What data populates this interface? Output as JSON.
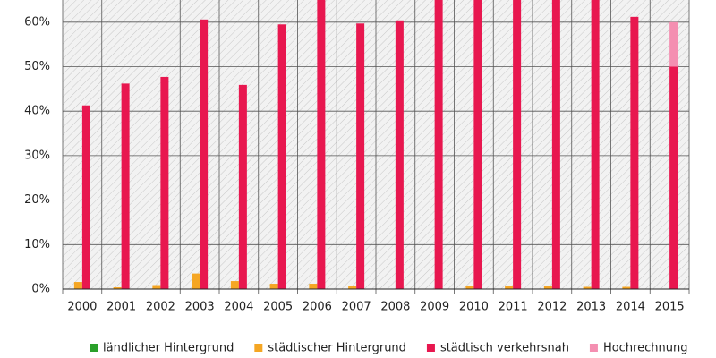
{
  "chart_data": {
    "type": "bar",
    "categories": [
      "2000",
      "2001",
      "2002",
      "2003",
      "2004",
      "2005",
      "2006",
      "2007",
      "2008",
      "2009",
      "2010",
      "2011",
      "2012",
      "2013",
      "2014",
      "2015"
    ],
    "series": [
      {
        "name": "ländlicher Hintergrund",
        "color": "#2aa02a",
        "values": [
          0,
          0,
          0,
          0,
          0,
          0,
          0,
          0,
          0,
          0,
          0,
          0,
          0,
          0,
          0,
          0
        ]
      },
      {
        "name": "städtischer Hintergrund",
        "color": "#f5a623",
        "values": [
          1.6,
          0.4,
          0.9,
          3.5,
          1.8,
          1.2,
          1.2,
          0.6,
          0,
          0,
          0.6,
          0.6,
          0.6,
          0.5,
          0.5,
          0
        ]
      },
      {
        "name": "städtisch verkehrsnah",
        "color": "#e8174f",
        "values": [
          41.3,
          46.2,
          47.7,
          60.6,
          45.9,
          59.5,
          65,
          59.7,
          60.4,
          65,
          65,
          65,
          65,
          65,
          61.2,
          50
        ]
      },
      {
        "name": "Hochrechnung",
        "color": "#f48fb1",
        "values": [
          null,
          null,
          null,
          null,
          null,
          null,
          null,
          null,
          null,
          null,
          null,
          null,
          null,
          null,
          null,
          10
        ],
        "stacked_on": "städtisch verkehrsnah"
      }
    ],
    "ylim": [
      0,
      65
    ],
    "yticks": [
      {
        "value": 0,
        "label": "0%"
      },
      {
        "value": 10,
        "label": "10%"
      },
      {
        "value": 20,
        "label": "20%"
      },
      {
        "value": 30,
        "label": "30%"
      },
      {
        "value": 40,
        "label": "40%"
      },
      {
        "value": 50,
        "label": "50%"
      },
      {
        "value": 60,
        "label": "60%"
      }
    ],
    "grid": true
  }
}
